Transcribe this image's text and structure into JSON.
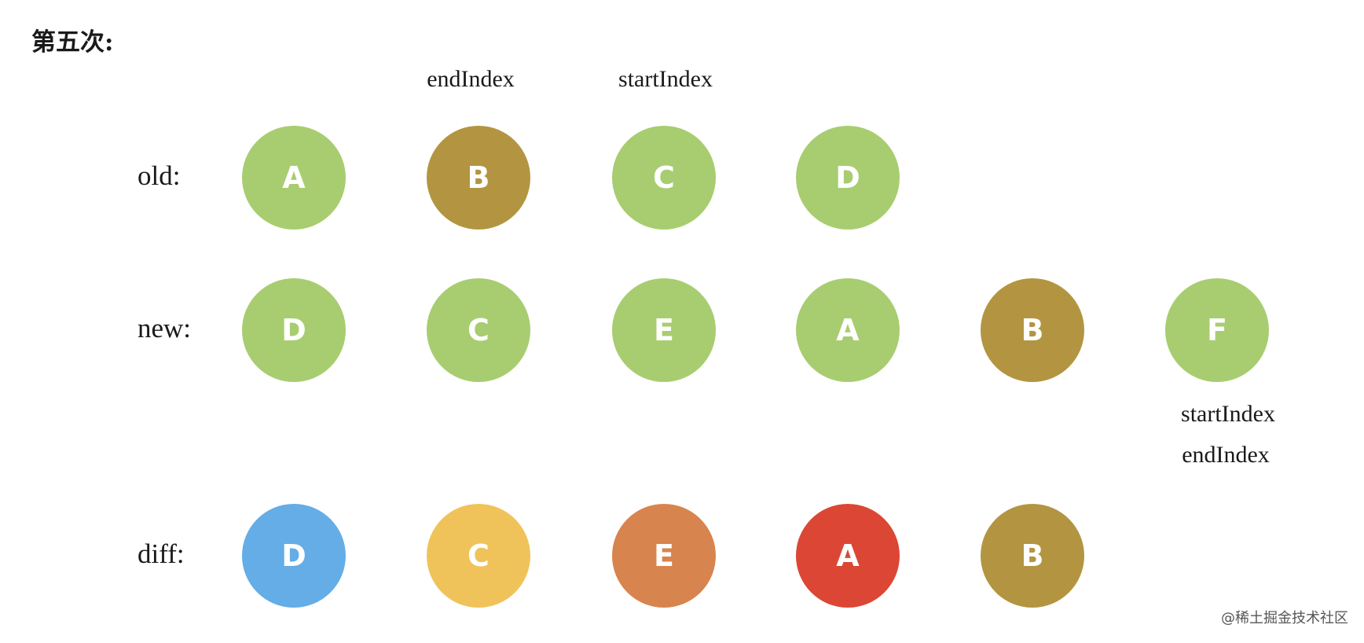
{
  "title": "第五次:",
  "labels": {
    "old": "old:",
    "new": "new:",
    "diff": "diff:"
  },
  "pointers": {
    "old_end": "endIndex",
    "old_start": "startIndex",
    "new_start": "startIndex",
    "new_end": "endIndex"
  },
  "colors": {
    "green": "#a8cd70",
    "brown": "#b39541",
    "blue": "#64ade6",
    "yellow": "#f0c35a",
    "orange": "#d8844e",
    "red": "#db4734"
  },
  "rows": {
    "old": [
      {
        "letter": "A",
        "color": "green"
      },
      {
        "letter": "B",
        "color": "brown"
      },
      {
        "letter": "C",
        "color": "green"
      },
      {
        "letter": "D",
        "color": "green"
      }
    ],
    "new": [
      {
        "letter": "D",
        "color": "green"
      },
      {
        "letter": "C",
        "color": "green"
      },
      {
        "letter": "E",
        "color": "green"
      },
      {
        "letter": "A",
        "color": "green"
      },
      {
        "letter": "B",
        "color": "brown"
      },
      {
        "letter": "F",
        "color": "green"
      }
    ],
    "diff": [
      {
        "letter": "D",
        "color": "blue"
      },
      {
        "letter": "C",
        "color": "yellow"
      },
      {
        "letter": "E",
        "color": "orange"
      },
      {
        "letter": "A",
        "color": "red"
      },
      {
        "letter": "B",
        "color": "brown"
      }
    ]
  },
  "watermark": "@稀土掘金技术社区"
}
